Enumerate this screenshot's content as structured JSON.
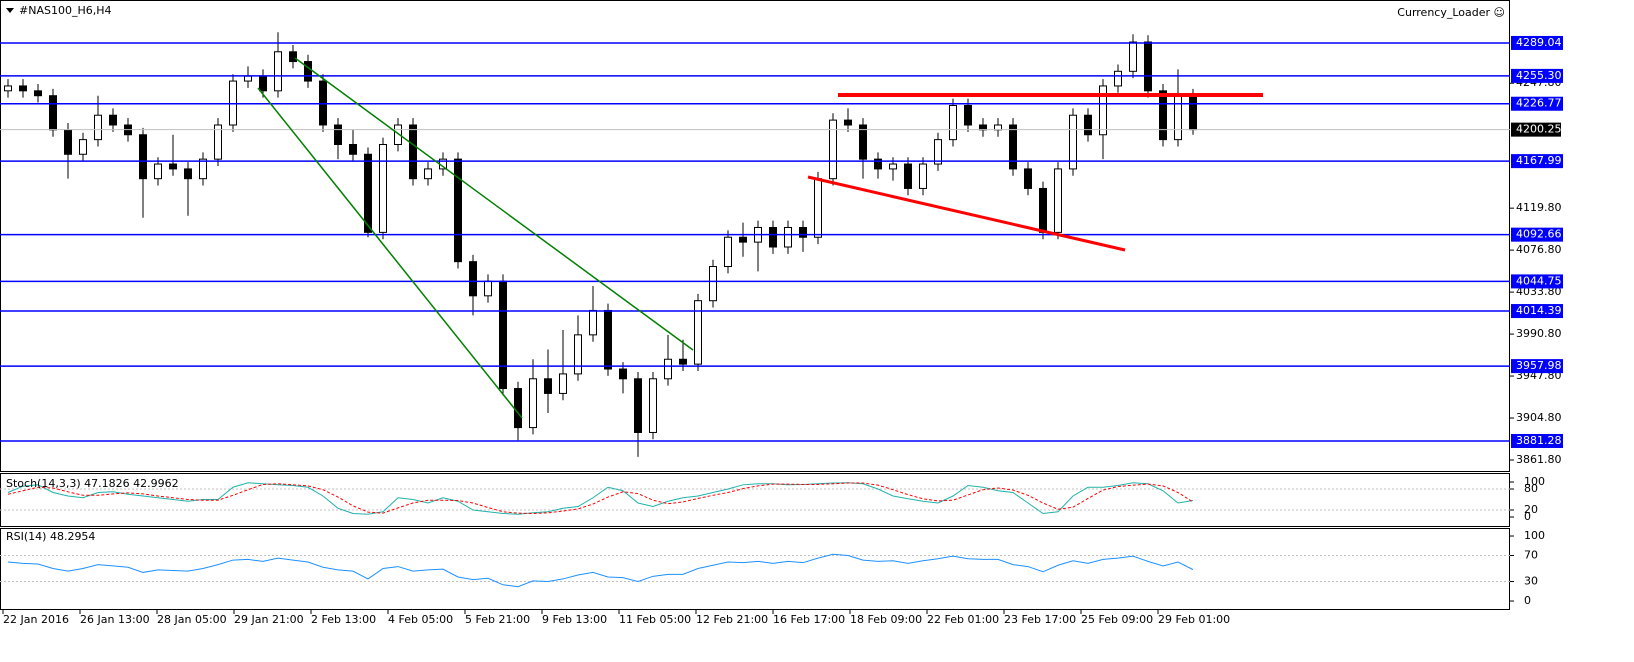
{
  "chart_data": [
    {
      "type": "candlestick",
      "title": "#NAS100_H6,H4",
      "account": "Currency_Loader ☺",
      "ylim": [
        3849.5,
        4331
      ],
      "yticks": [
        {
          "value": 3861.8,
          "label": "3861.80"
        },
        {
          "value": 3904.8,
          "label": "3904.80"
        },
        {
          "value": 3947.8,
          "label": "3947.80"
        },
        {
          "value": 3990.8,
          "label": "3990.80"
        },
        {
          "value": 4033.8,
          "label": "4033.80"
        },
        {
          "value": 4076.8,
          "label": "4076.80"
        },
        {
          "value": 4119.8,
          "label": "4119.80"
        },
        {
          "value": 4247.8,
          "label": "4247.80"
        }
      ],
      "levels": [
        4289.04,
        {
          "value": 4255.3,
          "label": "4255.30"
        },
        4226.77,
        4167.99,
        4092.66,
        4044.75,
        4014.39,
        3957.98,
        3881.28
      ],
      "current_price": 4200.25,
      "level_color": "#0000ff",
      "x_labels": [
        "22 Jan 2016",
        "26 Jan 13:00",
        "28 Jan 05:00",
        "29 Jan 21:00",
        "2 Feb 13:00",
        "4 Feb 05:00",
        "5 Feb 21:00",
        "9 Feb 13:00",
        "11 Feb 05:00",
        "12 Feb 21:00",
        "16 Feb 17:00",
        "18 Feb 09:00",
        "22 Feb 01:00",
        "23 Feb 17:00",
        "25 Feb 09:00",
        "29 Feb 01:00"
      ],
      "open": [
        4240,
        4245,
        4240,
        4235,
        4200,
        4175,
        4190,
        4215,
        4205,
        4195,
        4150,
        4165,
        4160,
        4150,
        4170,
        4205,
        4250,
        4255,
        4240,
        4280,
        4270,
        4250,
        4205,
        4185,
        4175,
        4095,
        4185,
        4205,
        4150,
        4160,
        4170,
        4065,
        4030,
        4045,
        3935,
        3895,
        3945,
        3930,
        3950,
        3990,
        4015,
        3955,
        3945,
        3890,
        3945,
        3965,
        3960,
        4025,
        4060,
        4090,
        4085,
        4100,
        4080,
        4100,
        4090,
        4150,
        4210,
        4205,
        4170,
        4160,
        4165,
        4140,
        4165,
        4190,
        4225,
        4205,
        4200,
        4205,
        4160,
        4140,
        4095,
        4160,
        4215,
        4195,
        4245,
        4260,
        4290,
        4240,
        4190,
        4235
      ],
      "high": [
        4252,
        4252,
        4247,
        4242,
        4207,
        4197,
        4235,
        4222,
        4212,
        4202,
        4172,
        4195,
        4167,
        4177,
        4212,
        4257,
        4265,
        4262,
        4300,
        4287,
        4277,
        4257,
        4212,
        4200,
        4182,
        4192,
        4212,
        4212,
        4167,
        4177,
        4177,
        4072,
        4052,
        4052,
        3942,
        3965,
        3975,
        3995,
        4010,
        4040,
        4022,
        3962,
        3952,
        3952,
        3990,
        3985,
        4032,
        4067,
        4097,
        4105,
        4107,
        4107,
        4107,
        4107,
        4157,
        4217,
        4222,
        4212,
        4177,
        4172,
        4172,
        4172,
        4197,
        4232,
        4232,
        4212,
        4212,
        4212,
        4167,
        4147,
        4167,
        4222,
        4222,
        4252,
        4267,
        4298,
        4297,
        4247,
        4262,
        4242
      ],
      "low": [
        4233,
        4233,
        4228,
        4193,
        4150,
        4168,
        4183,
        4198,
        4188,
        4110,
        4143,
        4153,
        4112,
        4143,
        4163,
        4198,
        4243,
        4233,
        4233,
        4263,
        4243,
        4198,
        4170,
        4168,
        4090,
        4088,
        4178,
        4143,
        4143,
        4153,
        4058,
        4010,
        4023,
        3928,
        3882,
        3888,
        3910,
        3923,
        3943,
        3983,
        3948,
        3930,
        3865,
        3883,
        3938,
        3953,
        3953,
        4018,
        4053,
        4070,
        4055,
        4073,
        4073,
        4075,
        4083,
        4143,
        4198,
        4150,
        4150,
        4148,
        4133,
        4133,
        4158,
        4183,
        4198,
        4193,
        4193,
        4153,
        4133,
        4088,
        4088,
        4153,
        4188,
        4170,
        4238,
        4253,
        4233,
        4183,
        4183,
        4195
      ],
      "close": [
        4245,
        4240,
        4235,
        4200,
        4175,
        4190,
        4215,
        4205,
        4195,
        4150,
        4165,
        4160,
        4150,
        4170,
        4205,
        4250,
        4255,
        4240,
        4280,
        4270,
        4250,
        4205,
        4185,
        4175,
        4095,
        4185,
        4205,
        4150,
        4160,
        4170,
        4065,
        4030,
        4045,
        3935,
        3895,
        3945,
        3930,
        3950,
        3990,
        4015,
        3955,
        3945,
        3890,
        3945,
        3965,
        3960,
        4025,
        4060,
        4090,
        4085,
        4100,
        4080,
        4100,
        4090,
        4150,
        4210,
        4205,
        4170,
        4160,
        4165,
        4140,
        4165,
        4190,
        4225,
        4205,
        4200,
        4205,
        4160,
        4140,
        4095,
        4160,
        4215,
        4195,
        4245,
        4260,
        4290,
        4240,
        4190,
        4235,
        4200.25
      ]
    },
    {
      "type": "line",
      "title": "Stoch(14,3,3) 47.1826 42.9962",
      "ylim": [
        -28.6,
        122.9
      ],
      "yticks": [
        100,
        80,
        20,
        0
      ],
      "levels": [
        80,
        20
      ],
      "series": [
        {
          "color": "#20b2aa",
          "line_style": "solid",
          "values": [
            70,
            88,
            92,
            70,
            60,
            55,
            70,
            72,
            65,
            60,
            55,
            50,
            45,
            50,
            50,
            85,
            98,
            95,
            92,
            90,
            85,
            60,
            25,
            10,
            8,
            15,
            55,
            50,
            40,
            55,
            45,
            20,
            15,
            10,
            8,
            12,
            15,
            25,
            30,
            55,
            85,
            75,
            40,
            30,
            45,
            55,
            60,
            70,
            80,
            92,
            95,
            95,
            92,
            93,
            95,
            97,
            98,
            95,
            80,
            60,
            52,
            45,
            40,
            60,
            90,
            85,
            75,
            70,
            40,
            10,
            15,
            60,
            85,
            85,
            90,
            98,
            95,
            75,
            40,
            47.1826
          ]
        },
        {
          "color": "#ff0000",
          "line_style": "dashed",
          "values": [
            65,
            75,
            85,
            83,
            72,
            62,
            62,
            66,
            69,
            66,
            60,
            55,
            50,
            48,
            48,
            62,
            78,
            93,
            95,
            92,
            89,
            78,
            57,
            32,
            14,
            11,
            26,
            40,
            48,
            48,
            47,
            40,
            27,
            15,
            11,
            10,
            12,
            17,
            23,
            37,
            57,
            72,
            67,
            48,
            38,
            43,
            53,
            62,
            70,
            81,
            89,
            94,
            94,
            93,
            93,
            95,
            97,
            97,
            91,
            78,
            64,
            52,
            46,
            48,
            63,
            78,
            83,
            77,
            62,
            40,
            22,
            28,
            53,
            77,
            87,
            91,
            94,
            89,
            70,
            42.9962
          ]
        }
      ]
    },
    {
      "type": "line",
      "title": "RSI(14) 48.2954",
      "ylim": [
        -13.8,
        110.8
      ],
      "yticks": [
        100,
        70,
        30,
        0
      ],
      "levels": [
        70,
        30
      ],
      "series": [
        {
          "color": "#1e90ff",
          "line_style": "solid",
          "values": [
            60,
            58,
            57,
            50,
            46,
            50,
            56,
            54,
            52,
            44,
            48,
            47,
            46,
            50,
            56,
            63,
            64,
            61,
            66,
            63,
            60,
            52,
            48,
            46,
            34,
            50,
            53,
            46,
            48,
            49,
            37,
            33,
            35,
            25,
            22,
            31,
            30,
            34,
            40,
            44,
            37,
            36,
            30,
            38,
            41,
            41,
            50,
            55,
            60,
            59,
            61,
            58,
            61,
            59,
            66,
            72,
            70,
            63,
            61,
            62,
            58,
            62,
            65,
            69,
            65,
            64,
            64,
            56,
            53,
            45,
            55,
            62,
            58,
            64,
            66,
            69,
            61,
            54,
            60,
            48.2954
          ]
        }
      ]
    }
  ]
}
